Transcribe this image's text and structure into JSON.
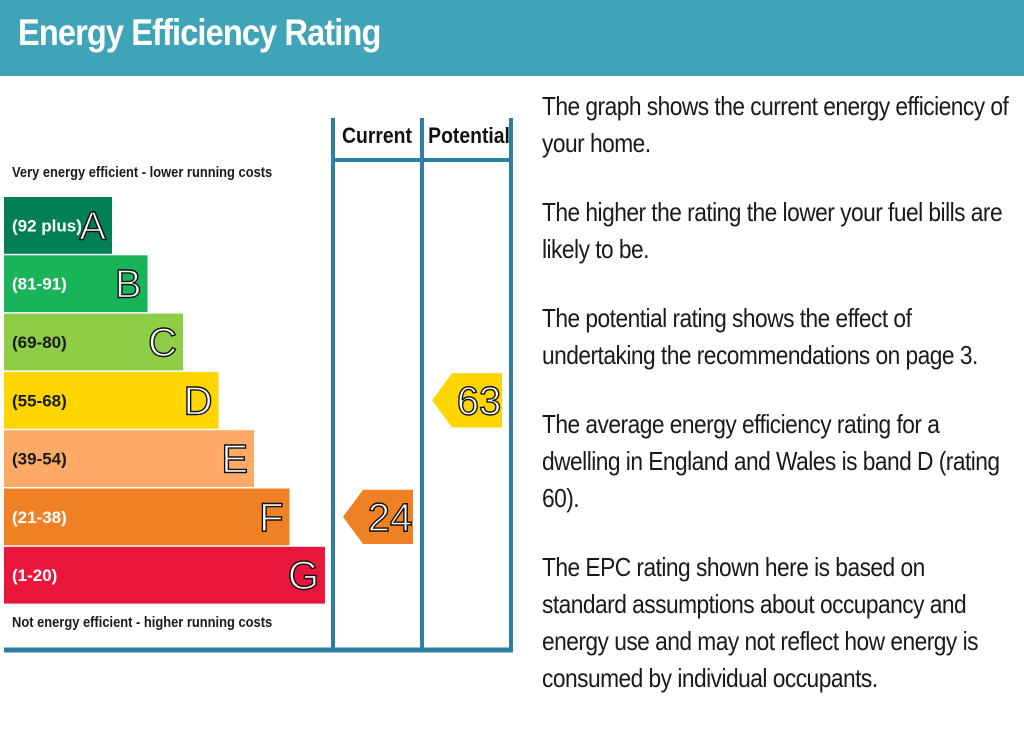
{
  "header": {
    "title": "Energy Efficiency Rating"
  },
  "chart_data": {
    "type": "bar",
    "title": "Energy Efficiency Rating",
    "top_label": "Very energy efficient - lower running costs",
    "bottom_label": "Not energy efficient - higher running costs",
    "columns": [
      "Current",
      "Potential"
    ],
    "bands": [
      {
        "letter": "A",
        "range": "(92 plus)",
        "color": "#008054"
      },
      {
        "letter": "B",
        "range": "(81-91)",
        "color": "#19b459"
      },
      {
        "letter": "C",
        "range": "(69-80)",
        "color": "#8dce46"
      },
      {
        "letter": "D",
        "range": "(55-68)",
        "color": "#ffd500"
      },
      {
        "letter": "E",
        "range": "(39-54)",
        "color": "#fcaa65"
      },
      {
        "letter": "F",
        "range": "(21-38)",
        "color": "#ef8023"
      },
      {
        "letter": "G",
        "range": "(1-20)",
        "color": "#e9153b"
      }
    ],
    "ratings": {
      "current": {
        "value": 24,
        "label": "24",
        "band": "F",
        "color": "#ef8023"
      },
      "potential": {
        "value": 63,
        "label": "63",
        "band": "D",
        "color": "#ffd500"
      }
    }
  },
  "description": [
    "The graph shows the current energy efficiency of your home.",
    "The higher the rating the lower your fuel bills are likely to be.",
    "The potential rating shows the effect of undertaking the recommendations on page 3.",
    "The average energy efficiency rating for a dwelling in England and Wales is band D (rating 60).",
    "The EPC rating shown here is based on standard assumptions about occupancy and energy use and may not reflect how energy is consumed by individual occupants."
  ],
  "colors": {
    "header": "#3fa4b8",
    "frame": "#2c7ea3"
  }
}
